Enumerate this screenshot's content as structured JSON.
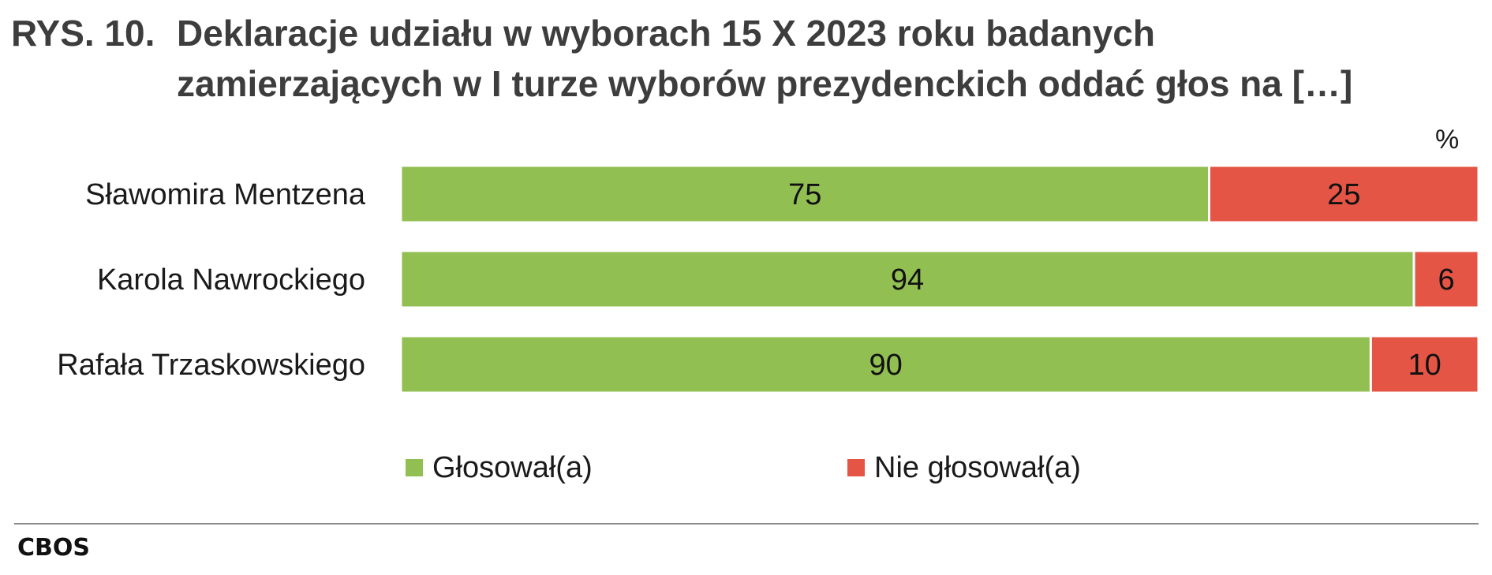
{
  "title": {
    "prefix": "RYS. 10.",
    "line1": "Deklaracje udziału w wyborach 15 X 2023 roku badanych",
    "line2": "zamierzających w I turze wyborów prezydenckich oddać głos na […]"
  },
  "unit_label": "%",
  "source": "CBOS",
  "colors": {
    "voted": "#92bf52",
    "not_voted": "#e45545"
  },
  "chart_data": {
    "type": "bar",
    "orientation": "horizontal",
    "stacked": true,
    "categories": [
      "Sławomira Mentzena",
      "Karola Nawrockiego",
      "Rafała Trzaskowskiego"
    ],
    "series": [
      {
        "name": "Głosował(a)",
        "values": [
          75,
          94,
          90
        ]
      },
      {
        "name": "Nie głosował(a)",
        "values": [
          25,
          6,
          10
        ]
      }
    ],
    "xlim": [
      0,
      100
    ],
    "grid": false,
    "legend": "bottom"
  }
}
